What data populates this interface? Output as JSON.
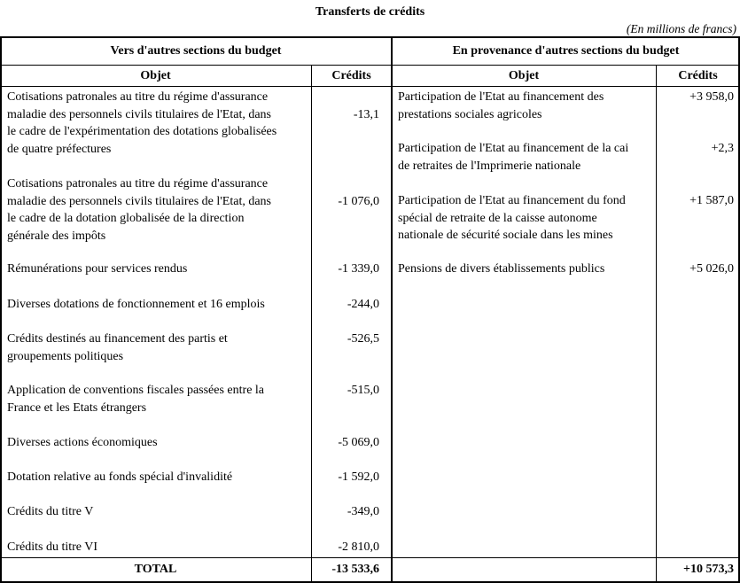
{
  "title": "Transferts de crédits",
  "unit": "(En millions de francs)",
  "headers": {
    "left_section": "Vers d'autres sections du budget",
    "right_section": "En provenance d'autres sections du budget",
    "objet": "Objet",
    "credits": "Crédits"
  },
  "left_rows": [
    {
      "lines": [
        "Cotisations patronales au titre du régime d'assurance",
        "maladie des personnels civils titulaires de l'Etat, dans",
        "le cadre de l'expérimentation des dotations globalisées",
        "de quatre préfectures"
      ],
      "credit": "-13,1",
      "credit_line": 1
    },
    {
      "lines": [
        "Cotisations patronales au titre du régime d'assurance",
        "maladie des personnels civils titulaires de l'Etat, dans",
        "le cadre de la dotation globalisée de la direction",
        "générale des impôts"
      ],
      "credit": "-1 076,0",
      "credit_line": 1
    },
    {
      "lines": [
        "Rémunérations pour services rendus"
      ],
      "credit": "-1 339,0",
      "credit_line": 0
    },
    {
      "lines": [
        "Diverses dotations de fonctionnement et 16 emplois"
      ],
      "credit": "-244,0",
      "credit_line": 0
    },
    {
      "lines": [
        "Crédits destinés au financement des partis et",
        "groupements politiques"
      ],
      "credit": "-526,5",
      "credit_line": 0
    },
    {
      "lines": [
        "Application de conventions fiscales passées entre la",
        "France et les Etats étrangers"
      ],
      "credit": "-515,0",
      "credit_line": 0
    },
    {
      "lines": [
        "Diverses actions économiques"
      ],
      "credit": "-5 069,0",
      "credit_line": 0
    },
    {
      "lines": [
        "Dotation relative au fonds spécial d'invalidité"
      ],
      "credit": "-1 592,0",
      "credit_line": 0
    },
    {
      "lines": [
        "Crédits du titre V"
      ],
      "credit": "-349,0",
      "credit_line": 0
    },
    {
      "lines": [
        "Crédits du titre VI"
      ],
      "credit": "-2 810,0",
      "credit_line": 0
    }
  ],
  "right_rows": [
    {
      "lines": [
        "Participation de l'Etat au financement des",
        "prestations sociales agricoles"
      ],
      "credit": "+3 958,0",
      "credit_line": 0
    },
    {
      "lines": [
        "Participation de l'Etat au financement de la cai",
        "de retraites de l'Imprimerie nationale"
      ],
      "credit": "+2,3",
      "credit_line": 0
    },
    {
      "lines": [
        "Participation de l'Etat au financement du fond",
        "spécial de retraite de la caisse autonome",
        "nationale de sécurité sociale dans les mines"
      ],
      "credit": "+1 587,0",
      "credit_line": 0
    },
    {
      "lines": [
        "Pensions de divers établissements publics"
      ],
      "credit": "+5 026,0",
      "credit_line": 0
    }
  ],
  "total": {
    "label": "TOTAL",
    "left_credit": "-13 533,6",
    "right_credit": "+10 573,3"
  }
}
